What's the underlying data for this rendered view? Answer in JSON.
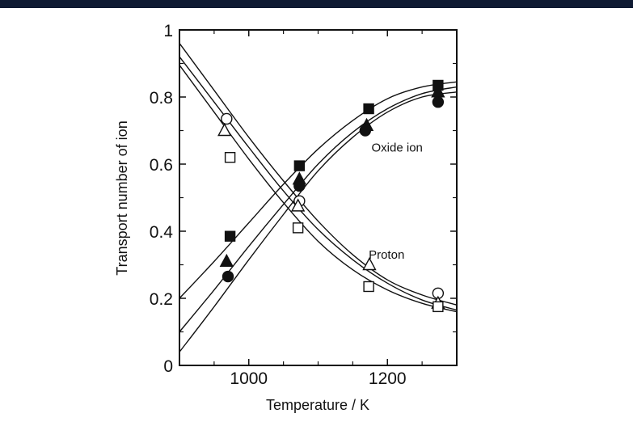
{
  "chart_data": {
    "type": "scatter",
    "title": "",
    "xlabel": "Temperature / K",
    "ylabel": "Transport number of ion",
    "xlim": [
      900,
      1300
    ],
    "ylim": [
      0,
      1
    ],
    "x_ticks": [
      {
        "value": 1000,
        "label": "1000"
      },
      {
        "value": 1200,
        "label": "1200"
      }
    ],
    "y_ticks": [
      {
        "value": 0,
        "label": "0"
      },
      {
        "value": 0.2,
        "label": "0.2"
      },
      {
        "value": 0.4,
        "label": "0.4"
      },
      {
        "value": 0.6,
        "label": "0.6"
      },
      {
        "value": 0.8,
        "label": "0.8"
      },
      {
        "value": 1,
        "label": "1"
      }
    ],
    "grid": false,
    "legend": "none",
    "annotations": [
      {
        "text": "Oxide ion",
        "x": 1177,
        "y": 0.65
      },
      {
        "text": "Proton",
        "x": 1173,
        "y": 0.33
      }
    ],
    "series": [
      {
        "group": "oxide-ion",
        "marker": "square",
        "filled": true,
        "points": [
          [
            973,
            0.385
          ],
          [
            1073,
            0.595
          ],
          [
            1173,
            0.765
          ],
          [
            1273,
            0.835
          ]
        ],
        "fit": [
          [
            900,
            0.2
          ],
          [
            950,
            0.31
          ],
          [
            1000,
            0.425
          ],
          [
            1050,
            0.54
          ],
          [
            1100,
            0.645
          ],
          [
            1150,
            0.73
          ],
          [
            1200,
            0.795
          ],
          [
            1250,
            0.83
          ],
          [
            1300,
            0.845
          ]
        ]
      },
      {
        "group": "oxide-ion",
        "marker": "triangle",
        "filled": true,
        "points": [
          [
            968,
            0.31
          ],
          [
            1073,
            0.555
          ],
          [
            1170,
            0.715
          ],
          [
            1273,
            0.815
          ]
        ],
        "fit": [
          [
            900,
            0.1
          ],
          [
            950,
            0.225
          ],
          [
            1000,
            0.355
          ],
          [
            1050,
            0.48
          ],
          [
            1100,
            0.6
          ],
          [
            1150,
            0.695
          ],
          [
            1200,
            0.765
          ],
          [
            1250,
            0.81
          ],
          [
            1300,
            0.83
          ]
        ]
      },
      {
        "group": "oxide-ion",
        "marker": "circle",
        "filled": true,
        "points": [
          [
            970,
            0.265
          ],
          [
            1073,
            0.535
          ],
          [
            1168,
            0.7
          ],
          [
            1273,
            0.785
          ]
        ],
        "fit": [
          [
            900,
            0.04
          ],
          [
            950,
            0.175
          ],
          [
            1000,
            0.315
          ],
          [
            1050,
            0.45
          ],
          [
            1100,
            0.58
          ],
          [
            1150,
            0.68
          ],
          [
            1200,
            0.755
          ],
          [
            1250,
            0.8
          ],
          [
            1300,
            0.815
          ]
        ]
      },
      {
        "group": "proton",
        "marker": "circle",
        "filled": false,
        "points": [
          [
            968,
            0.735
          ],
          [
            1073,
            0.49
          ],
          [
            1273,
            0.215
          ]
        ],
        "fit": [
          [
            900,
            0.96
          ],
          [
            950,
            0.82
          ],
          [
            1000,
            0.68
          ],
          [
            1050,
            0.55
          ],
          [
            1100,
            0.43
          ],
          [
            1150,
            0.33
          ],
          [
            1200,
            0.255
          ],
          [
            1250,
            0.21
          ],
          [
            1300,
            0.18
          ]
        ]
      },
      {
        "group": "proton",
        "marker": "triangle",
        "filled": false,
        "points": [
          [
            965,
            0.7
          ],
          [
            1071,
            0.475
          ],
          [
            1174,
            0.3
          ],
          [
            1273,
            0.185
          ]
        ],
        "fit": [
          [
            900,
            0.92
          ],
          [
            950,
            0.785
          ],
          [
            1000,
            0.65
          ],
          [
            1050,
            0.52
          ],
          [
            1100,
            0.405
          ],
          [
            1150,
            0.315
          ],
          [
            1200,
            0.245
          ],
          [
            1250,
            0.195
          ],
          [
            1300,
            0.165
          ]
        ]
      },
      {
        "group": "proton",
        "marker": "square",
        "filled": false,
        "points": [
          [
            973,
            0.62
          ],
          [
            1071,
            0.41
          ],
          [
            1173,
            0.235
          ],
          [
            1273,
            0.175
          ]
        ],
        "fit": [
          [
            900,
            0.895
          ],
          [
            950,
            0.755
          ],
          [
            1000,
            0.615
          ],
          [
            1050,
            0.485
          ],
          [
            1100,
            0.37
          ],
          [
            1150,
            0.285
          ],
          [
            1200,
            0.225
          ],
          [
            1250,
            0.185
          ],
          [
            1300,
            0.16
          ]
        ]
      }
    ]
  }
}
